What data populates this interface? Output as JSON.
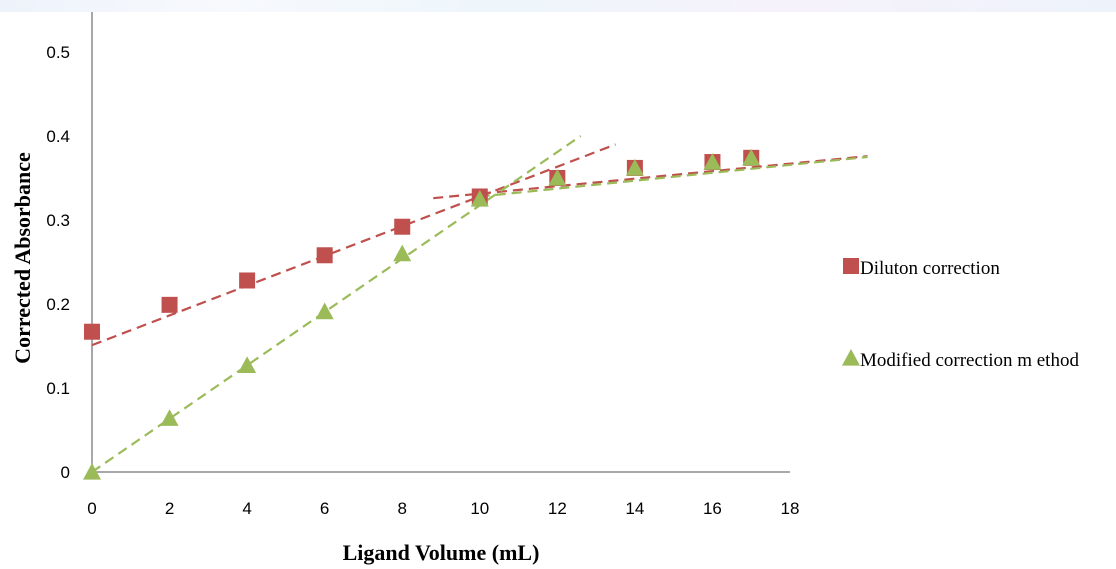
{
  "chart_data": {
    "type": "scatter",
    "title": "",
    "xlabel": "Ligand Volume (mL)",
    "ylabel": "Corrected Absorbance",
    "xlim": [
      0,
      18
    ],
    "ylim": [
      0,
      0.5
    ],
    "x_ticks": [
      "0",
      "2",
      "4",
      "6",
      "8",
      "10",
      "12",
      "14",
      "16",
      "18"
    ],
    "y_ticks": [
      "0",
      "0.1",
      "0.2",
      "0.3",
      "0.4",
      "0.5"
    ],
    "grid": false,
    "legend_position": "right",
    "series": [
      {
        "name": "Diluton correction",
        "marker": "square",
        "color": "#c0504d",
        "points": [
          {
            "x": 0,
            "y": 0.167
          },
          {
            "x": 2,
            "y": 0.199
          },
          {
            "x": 4,
            "y": 0.228
          },
          {
            "x": 6,
            "y": 0.258
          },
          {
            "x": 8,
            "y": 0.292
          },
          {
            "x": 10,
            "y": 0.328
          },
          {
            "x": 12,
            "y": 0.35
          },
          {
            "x": 14,
            "y": 0.362
          },
          {
            "x": 16,
            "y": 0.369
          },
          {
            "x": 17,
            "y": 0.374
          }
        ]
      },
      {
        "name": "Modified correction m ethod",
        "marker": "triangle",
        "color": "#9bbb59",
        "points": [
          {
            "x": 0,
            "y": 0.0
          },
          {
            "x": 2,
            "y": 0.064
          },
          {
            "x": 4,
            "y": 0.127
          },
          {
            "x": 6,
            "y": 0.191
          },
          {
            "x": 8,
            "y": 0.26
          },
          {
            "x": 10,
            "y": 0.325
          },
          {
            "x": 12,
            "y": 0.35
          },
          {
            "x": 14,
            "y": 0.362
          },
          {
            "x": 16,
            "y": 0.369
          },
          {
            "x": 17,
            "y": 0.374
          }
        ]
      }
    ],
    "trend_lines": [
      {
        "series": "Diluton correction",
        "color": "#c0504d",
        "style": "dashed",
        "from": {
          "x": 0,
          "y": 0.151
        },
        "to": {
          "x": 13.5,
          "y": 0.39
        }
      },
      {
        "series": "Diluton correction",
        "color": "#c0504d",
        "style": "dashed",
        "from": {
          "x": 8.8,
          "y": 0.326
        },
        "to": {
          "x": 20,
          "y": 0.376
        }
      },
      {
        "series": "Modified correction m ethod",
        "color": "#9bbb59",
        "style": "dashed",
        "from": {
          "x": 0,
          "y": 0.0
        },
        "to": {
          "x": 12.6,
          "y": 0.4
        }
      },
      {
        "series": "Modified correction m ethod",
        "color": "#9bbb59",
        "style": "dashed",
        "from": {
          "x": 10,
          "y": 0.328
        },
        "to": {
          "x": 20,
          "y": 0.375
        }
      }
    ]
  }
}
